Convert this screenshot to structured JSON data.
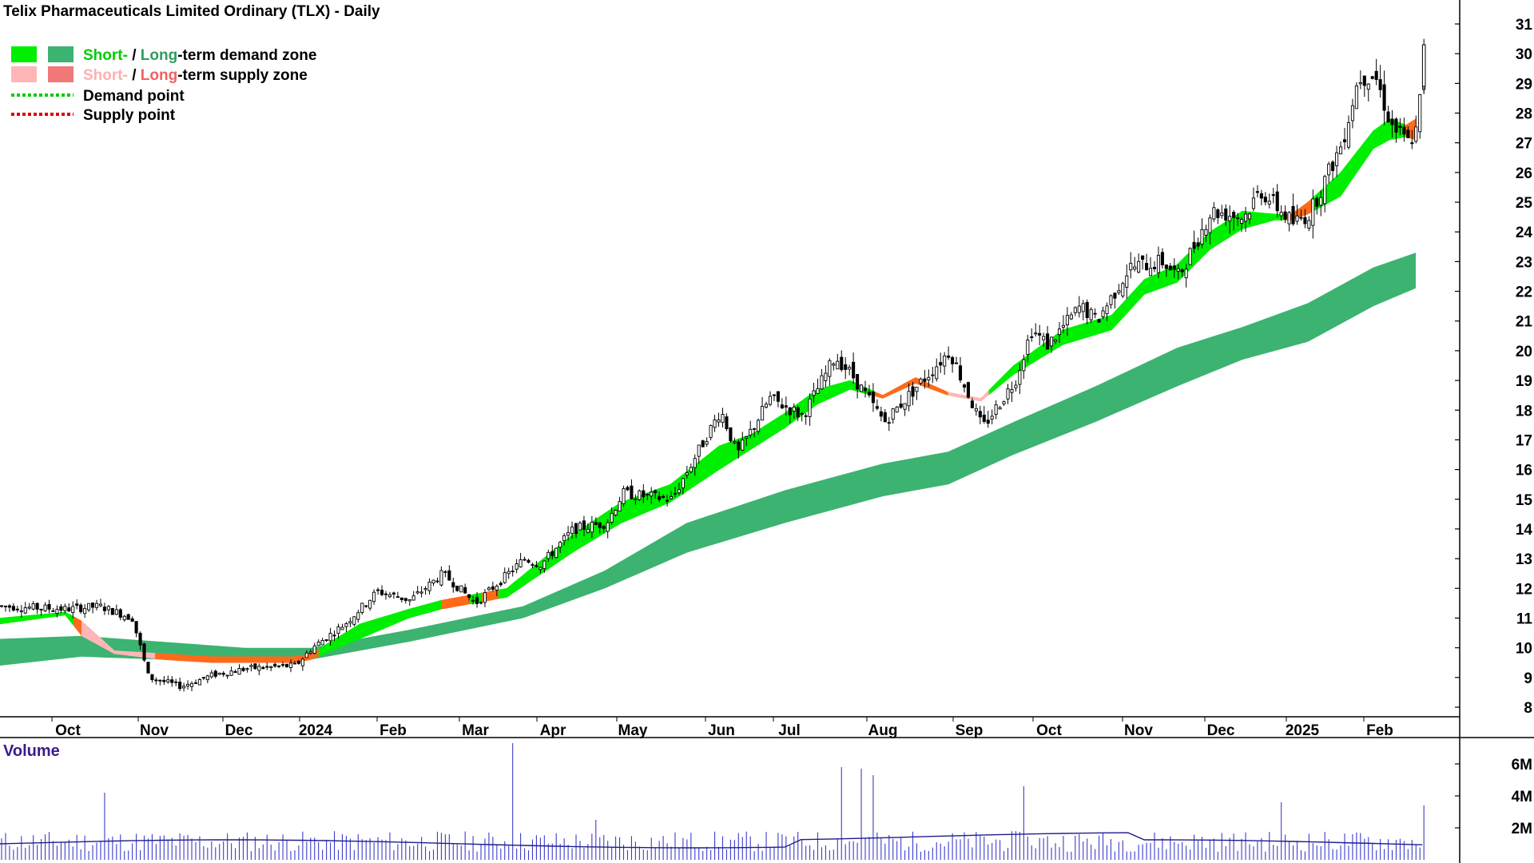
{
  "header": {
    "title": "Telix Pharmaceuticals Limited Ordinary (TLX) - Daily"
  },
  "legend": {
    "demand_zone": {
      "short": "Short-",
      "sep": " / ",
      "long": "Long",
      "rest": "-term demand zone"
    },
    "supply_zone": {
      "short": "Short-",
      "sep": " / ",
      "long": "Long",
      "rest": "-term supply zone"
    },
    "demand_point": "Demand point",
    "supply_point": "Supply point"
  },
  "volume_panel": {
    "title": "Volume",
    "ticks": [
      "6M",
      "4M",
      "2M"
    ]
  },
  "colors": {
    "short_demand": "#00ee00",
    "long_demand": "#3cb371",
    "short_supply": "#ffb6b6",
    "long_supply": "#f07850",
    "orange_supply": "#ff6a1a",
    "volume": "#3c3ccc",
    "volume_ma": "#1e1e8c",
    "demand_point": "#00cc00",
    "supply_point": "#e00000"
  },
  "chart_data": {
    "type": "candlestick",
    "title": "Telix Pharmaceuticals Limited Ordinary (TLX) - Daily",
    "y_axis": {
      "position": "right",
      "ticks": [
        31,
        30,
        29,
        28,
        27,
        26,
        25,
        24,
        23,
        22,
        21,
        20,
        19,
        18,
        17,
        16,
        15,
        14,
        13,
        12,
        11,
        10,
        9,
        8
      ],
      "ylim": [
        7.5,
        31.5
      ]
    },
    "x_axis": {
      "months": [
        "Oct",
        "Nov",
        "Dec",
        "2024",
        "Feb",
        "Mar",
        "Apr",
        "May",
        "Jun",
        "Jul",
        "Aug",
        "Sep",
        "Oct",
        "Nov",
        "Dec",
        "2025",
        "Feb"
      ]
    },
    "close_path": [
      [
        0,
        11.4
      ],
      [
        4,
        11.3
      ],
      [
        6,
        11.4
      ],
      [
        8,
        11.0
      ],
      [
        9,
        9.0
      ],
      [
        11,
        8.7
      ],
      [
        13,
        9.1
      ],
      [
        15,
        9.3
      ],
      [
        18,
        9.4
      ],
      [
        19,
        10.0
      ],
      [
        21,
        10.8
      ],
      [
        23,
        11.9
      ],
      [
        25,
        11.6
      ],
      [
        27,
        12.5
      ],
      [
        29,
        11.5
      ],
      [
        32,
        13.0
      ],
      [
        33,
        12.8
      ],
      [
        35,
        14.0
      ],
      [
        37,
        14.2
      ],
      [
        38,
        15.2
      ],
      [
        41,
        15.0
      ],
      [
        44,
        18.0
      ],
      [
        45,
        16.5
      ],
      [
        47,
        18.4
      ],
      [
        49,
        17.8
      ],
      [
        51,
        19.8
      ],
      [
        52,
        19.2
      ],
      [
        54,
        17.6
      ],
      [
        56,
        18.8
      ],
      [
        58,
        20.0
      ],
      [
        60,
        17.4
      ],
      [
        62,
        19.0
      ],
      [
        63,
        20.7
      ],
      [
        64,
        20.2
      ],
      [
        66,
        21.5
      ],
      [
        67,
        21.0
      ],
      [
        69,
        22.8
      ],
      [
        71,
        23.0
      ],
      [
        72,
        22.5
      ],
      [
        74,
        24.7
      ],
      [
        76,
        24.5
      ],
      [
        77,
        25.4
      ],
      [
        79,
        24.3
      ],
      [
        80,
        24.6
      ],
      [
        82,
        27.0
      ],
      [
        83,
        29.2
      ],
      [
        84,
        29.3
      ],
      [
        85,
        27.6
      ],
      [
        86,
        27.0
      ],
      [
        86.6,
        27.4
      ],
      [
        87,
        30.0
      ]
    ],
    "short_term_zone": [
      [
        0,
        11.0,
        10.8
      ],
      [
        4,
        11.2,
        11.1
      ],
      [
        5,
        10.9,
        10.4
      ],
      [
        7,
        9.9,
        9.8
      ],
      [
        10,
        9.8,
        9.6
      ],
      [
        13,
        9.7,
        9.5
      ],
      [
        18,
        9.7,
        9.5
      ],
      [
        19,
        9.8,
        9.6
      ],
      [
        22,
        10.8,
        10.3
      ],
      [
        25,
        11.3,
        11.0
      ],
      [
        27,
        11.6,
        11.3
      ],
      [
        29,
        11.8,
        11.5
      ],
      [
        31,
        12.0,
        11.7
      ],
      [
        35,
        13.8,
        13.2
      ],
      [
        38,
        14.9,
        14.2
      ],
      [
        41,
        15.5,
        14.9
      ],
      [
        44,
        16.8,
        16.0
      ],
      [
        46,
        17.2,
        16.7
      ],
      [
        48,
        17.9,
        17.4
      ],
      [
        50,
        18.7,
        18.2
      ],
      [
        52,
        19.0,
        18.7
      ],
      [
        54,
        18.5,
        18.4
      ],
      [
        56,
        19.1,
        18.9
      ],
      [
        58,
        18.6,
        18.5
      ],
      [
        60,
        18.4,
        18.3
      ],
      [
        62,
        19.5,
        19.2
      ],
      [
        65,
        20.7,
        20.2
      ],
      [
        68,
        21.2,
        20.7
      ],
      [
        70,
        22.4,
        21.9
      ],
      [
        72,
        22.9,
        22.3
      ],
      [
        74,
        24.0,
        23.4
      ],
      [
        76,
        24.7,
        24.1
      ],
      [
        78,
        24.6,
        24.4
      ],
      [
        79,
        24.6,
        24.4
      ],
      [
        80,
        25.0,
        24.6
      ],
      [
        82,
        26.0,
        25.2
      ],
      [
        84,
        27.4,
        26.8
      ],
      [
        85,
        27.8,
        27.1
      ],
      [
        86,
        27.6,
        27.2
      ],
      [
        86.6,
        27.8,
        27.1
      ]
    ],
    "long_term_zone": [
      [
        0,
        10.3,
        9.4
      ],
      [
        5,
        10.4,
        9.7
      ],
      [
        10,
        10.2,
        9.6
      ],
      [
        15,
        10.0,
        9.6
      ],
      [
        19,
        10.0,
        9.6
      ],
      [
        25,
        10.6,
        10.2
      ],
      [
        32,
        11.4,
        11.0
      ],
      [
        37,
        12.6,
        12.0
      ],
      [
        42,
        14.2,
        13.2
      ],
      [
        48,
        15.3,
        14.2
      ],
      [
        54,
        16.2,
        15.1
      ],
      [
        58,
        16.6,
        15.5
      ],
      [
        62,
        17.6,
        16.5
      ],
      [
        67,
        18.8,
        17.6
      ],
      [
        72,
        20.1,
        18.8
      ],
      [
        76,
        20.8,
        19.7
      ],
      [
        80,
        21.6,
        20.3
      ],
      [
        84,
        22.8,
        21.5
      ],
      [
        86.6,
        23.3,
        22.1
      ]
    ],
    "volume_units": "M",
    "volume_ylim": [
      0,
      7.2
    ],
    "volume_spikes": [
      [
        6.4,
        4.2
      ],
      [
        31.3,
        7.3
      ],
      [
        36.3,
        2.5
      ],
      [
        51.4,
        5.8
      ],
      [
        52.6,
        5.7
      ],
      [
        53.2,
        5.3
      ],
      [
        62.6,
        4.6
      ],
      [
        78.2,
        3.6
      ],
      [
        87,
        3.4
      ]
    ]
  }
}
